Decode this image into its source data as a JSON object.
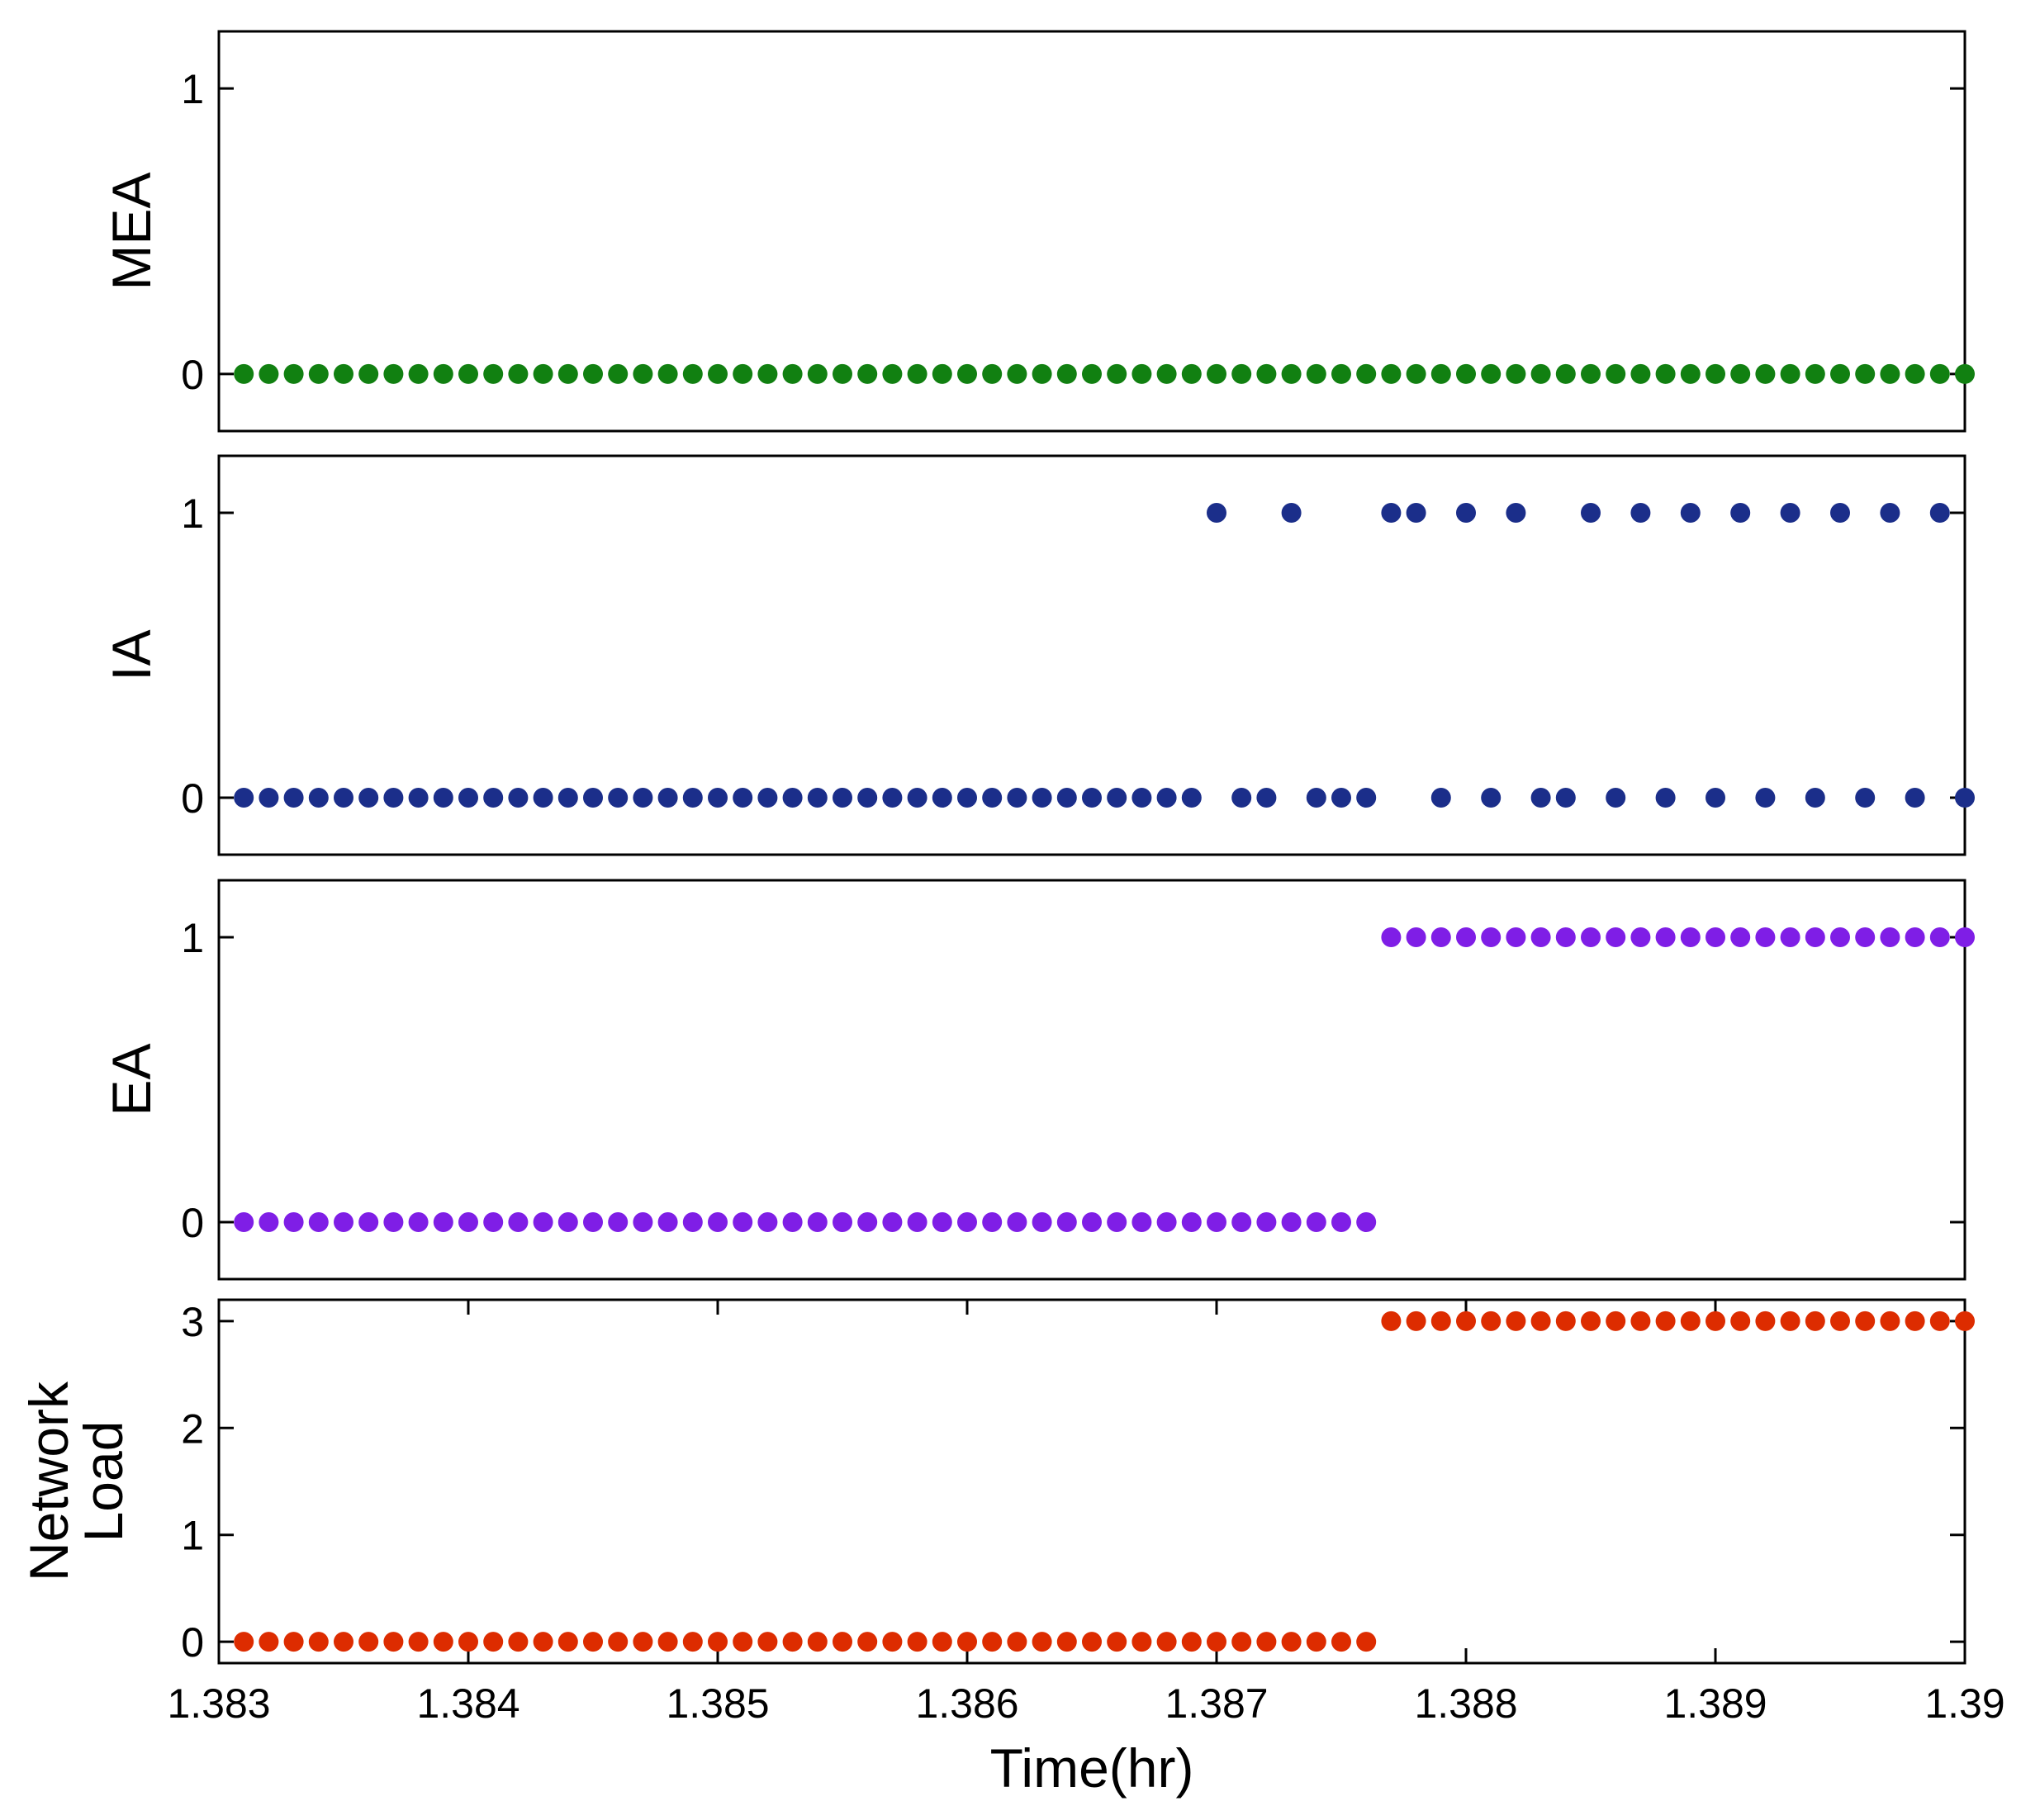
{
  "chart_data": [
    {
      "type": "scatter",
      "ylabel": [
        "MEA"
      ],
      "color": "#118011",
      "ylim": [
        -0.2,
        1.2
      ],
      "yticks": [
        0,
        1
      ],
      "ytick_labels": [
        "0",
        "1"
      ],
      "series": [
        {
          "name": "",
          "x": [
            1.3831,
            1.3832,
            1.3833,
            1.3834,
            1.3835,
            1.3836,
            1.3837,
            1.3838,
            1.3839,
            1.384,
            1.3841,
            1.3842,
            1.3843,
            1.3844,
            1.3845,
            1.3846,
            1.3847,
            1.3848,
            1.3849,
            1.385,
            1.3851,
            1.3852,
            1.3853,
            1.3854,
            1.3855,
            1.3856,
            1.3857,
            1.3858,
            1.3859,
            1.386,
            1.3861,
            1.3862,
            1.3863,
            1.3864,
            1.3865,
            1.3866,
            1.3867,
            1.3868,
            1.3869,
            1.387,
            1.3871,
            1.3872,
            1.3873,
            1.3874,
            1.3875,
            1.3876,
            1.3877,
            1.3878,
            1.3879,
            1.388,
            1.3881,
            1.3882,
            1.3883,
            1.3884,
            1.3885,
            1.3886,
            1.3887,
            1.3888,
            1.3889,
            1.389,
            1.3891,
            1.3892,
            1.3893,
            1.3894,
            1.3895,
            1.3896,
            1.3897,
            1.3898,
            1.3899,
            1.39
          ],
          "y": [
            0,
            0,
            0,
            0,
            0,
            0,
            0,
            0,
            0,
            0,
            0,
            0,
            0,
            0,
            0,
            0,
            0,
            0,
            0,
            0,
            0,
            0,
            0,
            0,
            0,
            0,
            0,
            0,
            0,
            0,
            0,
            0,
            0,
            0,
            0,
            0,
            0,
            0,
            0,
            0,
            0,
            0,
            0,
            0,
            0,
            0,
            0,
            0,
            0,
            0,
            0,
            0,
            0,
            0,
            0,
            0,
            0,
            0,
            0,
            0,
            0,
            0,
            0,
            0,
            0,
            0,
            0,
            0,
            0,
            0
          ]
        }
      ]
    },
    {
      "type": "scatter",
      "ylabel": [
        "IA"
      ],
      "color": "#1b2e8a",
      "ylim": [
        -0.2,
        1.2
      ],
      "yticks": [
        0,
        1
      ],
      "ytick_labels": [
        "0",
        "1"
      ],
      "series": [
        {
          "name": "",
          "x": [
            1.3831,
            1.3832,
            1.3833,
            1.3834,
            1.3835,
            1.3836,
            1.3837,
            1.3838,
            1.3839,
            1.384,
            1.3841,
            1.3842,
            1.3843,
            1.3844,
            1.3845,
            1.3846,
            1.3847,
            1.3848,
            1.3849,
            1.385,
            1.3851,
            1.3852,
            1.3853,
            1.3854,
            1.3855,
            1.3856,
            1.3857,
            1.3858,
            1.3859,
            1.386,
            1.3861,
            1.3862,
            1.3863,
            1.3864,
            1.3865,
            1.3866,
            1.3867,
            1.3868,
            1.3869,
            1.387,
            1.3871,
            1.3872,
            1.3873,
            1.3874,
            1.3875,
            1.3876,
            1.3877,
            1.3878,
            1.3879,
            1.388,
            1.3881,
            1.3882,
            1.3883,
            1.3884,
            1.3885,
            1.3886,
            1.3887,
            1.3888,
            1.3889,
            1.389,
            1.3891,
            1.3892,
            1.3893,
            1.3894,
            1.3895,
            1.3896,
            1.3897,
            1.3898,
            1.3899,
            1.39
          ],
          "y": [
            0,
            0,
            0,
            0,
            0,
            0,
            0,
            0,
            0,
            0,
            0,
            0,
            0,
            0,
            0,
            0,
            0,
            0,
            0,
            0,
            0,
            0,
            0,
            0,
            0,
            0,
            0,
            0,
            0,
            0,
            0,
            0,
            0,
            0,
            0,
            0,
            0,
            0,
            0,
            1,
            0,
            0,
            1,
            0,
            0,
            0,
            1,
            1,
            0,
            1,
            0,
            1,
            0,
            0,
            1,
            0,
            1,
            0,
            1,
            0,
            1,
            0,
            1,
            0,
            1,
            0,
            1,
            0,
            1,
            0
          ]
        }
      ]
    },
    {
      "type": "scatter",
      "ylabel": [
        "EA"
      ],
      "color": "#7f1ee6",
      "ylim": [
        -0.2,
        1.2
      ],
      "yticks": [
        0,
        1
      ],
      "ytick_labels": [
        "0",
        "1"
      ],
      "series": [
        {
          "name": "",
          "x": [
            1.3831,
            1.3832,
            1.3833,
            1.3834,
            1.3835,
            1.3836,
            1.3837,
            1.3838,
            1.3839,
            1.384,
            1.3841,
            1.3842,
            1.3843,
            1.3844,
            1.3845,
            1.3846,
            1.3847,
            1.3848,
            1.3849,
            1.385,
            1.3851,
            1.3852,
            1.3853,
            1.3854,
            1.3855,
            1.3856,
            1.3857,
            1.3858,
            1.3859,
            1.386,
            1.3861,
            1.3862,
            1.3863,
            1.3864,
            1.3865,
            1.3866,
            1.3867,
            1.3868,
            1.3869,
            1.387,
            1.3871,
            1.3872,
            1.3873,
            1.3874,
            1.3875,
            1.3876,
            1.3877,
            1.3878,
            1.3879,
            1.388,
            1.3881,
            1.3882,
            1.3883,
            1.3884,
            1.3885,
            1.3886,
            1.3887,
            1.3888,
            1.3889,
            1.389,
            1.3891,
            1.3892,
            1.3893,
            1.3894,
            1.3895,
            1.3896,
            1.3897,
            1.3898,
            1.3899,
            1.39
          ],
          "y": [
            0,
            0,
            0,
            0,
            0,
            0,
            0,
            0,
            0,
            0,
            0,
            0,
            0,
            0,
            0,
            0,
            0,
            0,
            0,
            0,
            0,
            0,
            0,
            0,
            0,
            0,
            0,
            0,
            0,
            0,
            0,
            0,
            0,
            0,
            0,
            0,
            0,
            0,
            0,
            0,
            0,
            0,
            0,
            0,
            0,
            0,
            1,
            1,
            1,
            1,
            1,
            1,
            1,
            1,
            1,
            1,
            1,
            1,
            1,
            1,
            1,
            1,
            1,
            1,
            1,
            1,
            1,
            1,
            1,
            1
          ]
        }
      ]
    },
    {
      "type": "scatter",
      "ylabel": [
        "Network",
        "Load"
      ],
      "color": "#dd2c00",
      "xlabel": "Time(hr)",
      "xlim": [
        1.383,
        1.39
      ],
      "xticks": [
        1.383,
        1.384,
        1.385,
        1.386,
        1.387,
        1.388,
        1.389,
        1.39
      ],
      "xtick_labels": [
        "1.383",
        "1.384",
        "1.385",
        "1.386",
        "1.387",
        "1.388",
        "1.389",
        "1.39"
      ],
      "ylim": [
        -0.2,
        3.2
      ],
      "yticks": [
        0,
        1,
        2,
        3
      ],
      "ytick_labels": [
        "0",
        "1",
        "2",
        "3"
      ],
      "series": [
        {
          "name": "",
          "x": [
            1.3831,
            1.3832,
            1.3833,
            1.3834,
            1.3835,
            1.3836,
            1.3837,
            1.3838,
            1.3839,
            1.384,
            1.3841,
            1.3842,
            1.3843,
            1.3844,
            1.3845,
            1.3846,
            1.3847,
            1.3848,
            1.3849,
            1.385,
            1.3851,
            1.3852,
            1.3853,
            1.3854,
            1.3855,
            1.3856,
            1.3857,
            1.3858,
            1.3859,
            1.386,
            1.3861,
            1.3862,
            1.3863,
            1.3864,
            1.3865,
            1.3866,
            1.3867,
            1.3868,
            1.3869,
            1.387,
            1.3871,
            1.3872,
            1.3873,
            1.3874,
            1.3875,
            1.3876,
            1.3877,
            1.3878,
            1.3879,
            1.388,
            1.3881,
            1.3882,
            1.3883,
            1.3884,
            1.3885,
            1.3886,
            1.3887,
            1.3888,
            1.3889,
            1.389,
            1.3891,
            1.3892,
            1.3893,
            1.3894,
            1.3895,
            1.3896,
            1.3897,
            1.3898,
            1.3899,
            1.39
          ],
          "y": [
            0,
            0,
            0,
            0,
            0,
            0,
            0,
            0,
            0,
            0,
            0,
            0,
            0,
            0,
            0,
            0,
            0,
            0,
            0,
            0,
            0,
            0,
            0,
            0,
            0,
            0,
            0,
            0,
            0,
            0,
            0,
            0,
            0,
            0,
            0,
            0,
            0,
            0,
            0,
            0,
            0,
            0,
            0,
            0,
            0,
            0,
            3,
            3,
            3,
            3,
            3,
            3,
            3,
            3,
            3,
            3,
            3,
            3,
            3,
            3,
            3,
            3,
            3,
            3,
            3,
            3,
            3,
            3,
            3,
            3
          ]
        }
      ]
    }
  ]
}
